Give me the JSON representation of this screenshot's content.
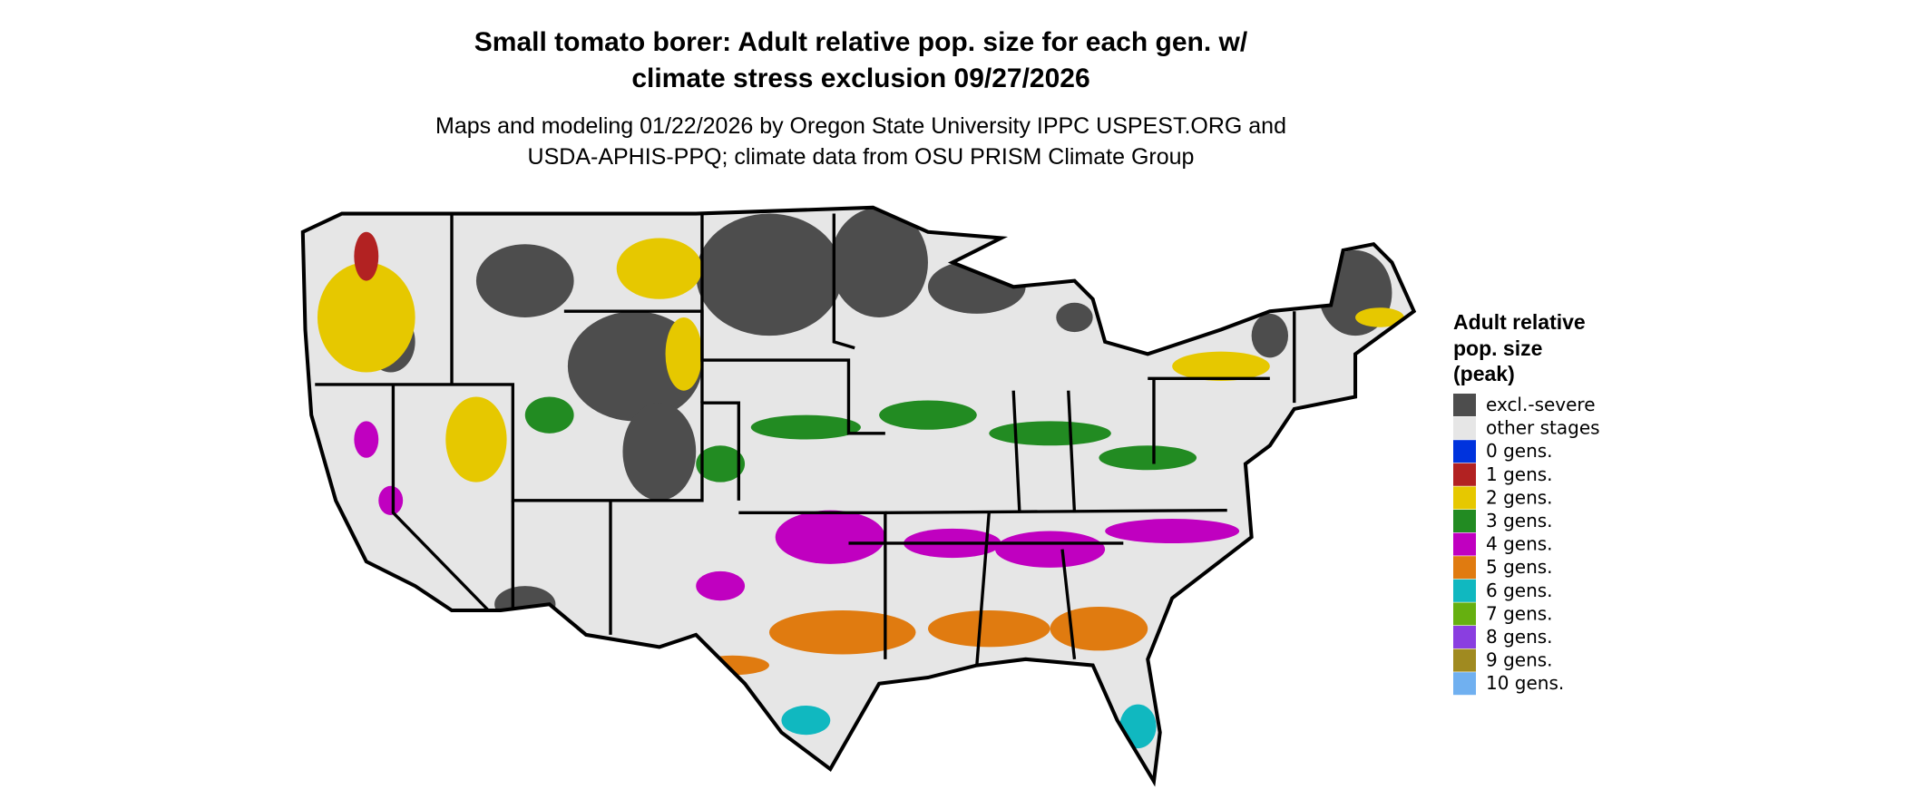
{
  "title": [
    "Small tomato borer: Adult relative pop. size for each gen. w/",
    "climate stress exclusion 09/27/2026"
  ],
  "subtitle": [
    "Maps and modeling 01/22/2026 by Oregon State University IPPC USPEST.ORG and",
    "USDA-APHIS-PPQ; climate data from OSU PRISM Climate Group"
  ],
  "legend": {
    "title": [
      "Adult relative",
      "pop. size",
      "(peak)"
    ],
    "items": [
      {
        "label": "excl.-severe",
        "color": "#4d4d4d"
      },
      {
        "label": "other stages",
        "color": "#e6e6e6"
      },
      {
        "label": "0 gens.",
        "color": "#0033dd"
      },
      {
        "label": "1 gens.",
        "color": "#b22222"
      },
      {
        "label": "2 gens.",
        "color": "#e6c800"
      },
      {
        "label": "3 gens.",
        "color": "#228b22"
      },
      {
        "label": "4 gens.",
        "color": "#c000c0"
      },
      {
        "label": "5 gens.",
        "color": "#e07b10"
      },
      {
        "label": "6 gens.",
        "color": "#10b8c0"
      },
      {
        "label": "7 gens.",
        "color": "#66b010"
      },
      {
        "label": "8 gens.",
        "color": "#8a3ee0"
      },
      {
        "label": "9 gens.",
        "color": "#a08a20"
      },
      {
        "label": "10 gens.",
        "color": "#70b0f0"
      }
    ]
  }
}
